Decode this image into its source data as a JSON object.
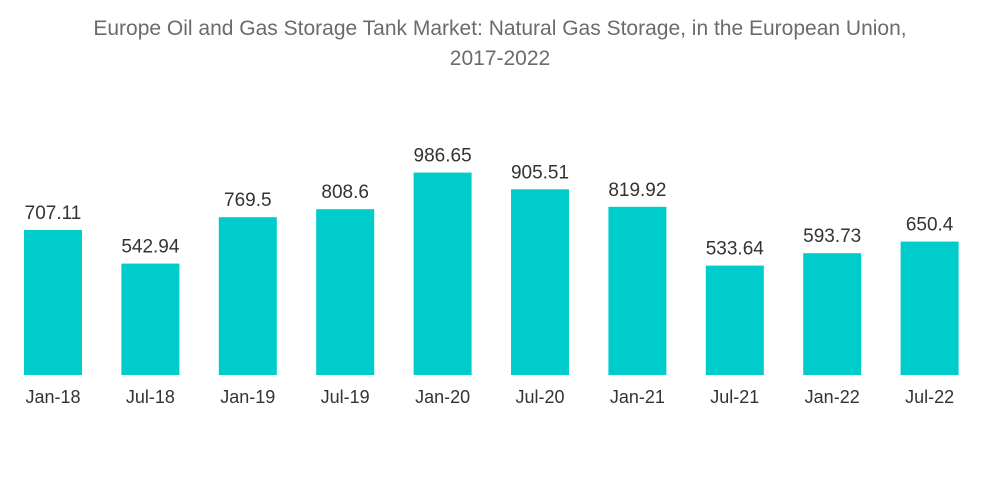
{
  "chart_data": {
    "type": "bar",
    "title_line1": "Europe Oil and Gas Storage Tank Market: Natural Gas Storage, in the European Union,",
    "title_line2": "2017-2022",
    "categories": [
      "Jan-18",
      "Jul-18",
      "Jan-19",
      "Jul-19",
      "Jan-20",
      "Jul-20",
      "Jan-21",
      "Jul-21",
      "Jan-22",
      "Jul-22"
    ],
    "values": [
      707.11,
      542.94,
      769.5,
      808.6,
      986.65,
      905.51,
      819.92,
      533.64,
      593.73,
      650.4
    ],
    "value_labels": [
      "707.11",
      "542.94",
      "769.5",
      "808.6",
      "986.65",
      "905.51",
      "819.92",
      "533.64",
      "593.73",
      "650.4"
    ],
    "ylim": [
      0,
      1000
    ],
    "xlabel": "",
    "ylabel": "",
    "grid": false,
    "bar_color": "#00cccc"
  }
}
